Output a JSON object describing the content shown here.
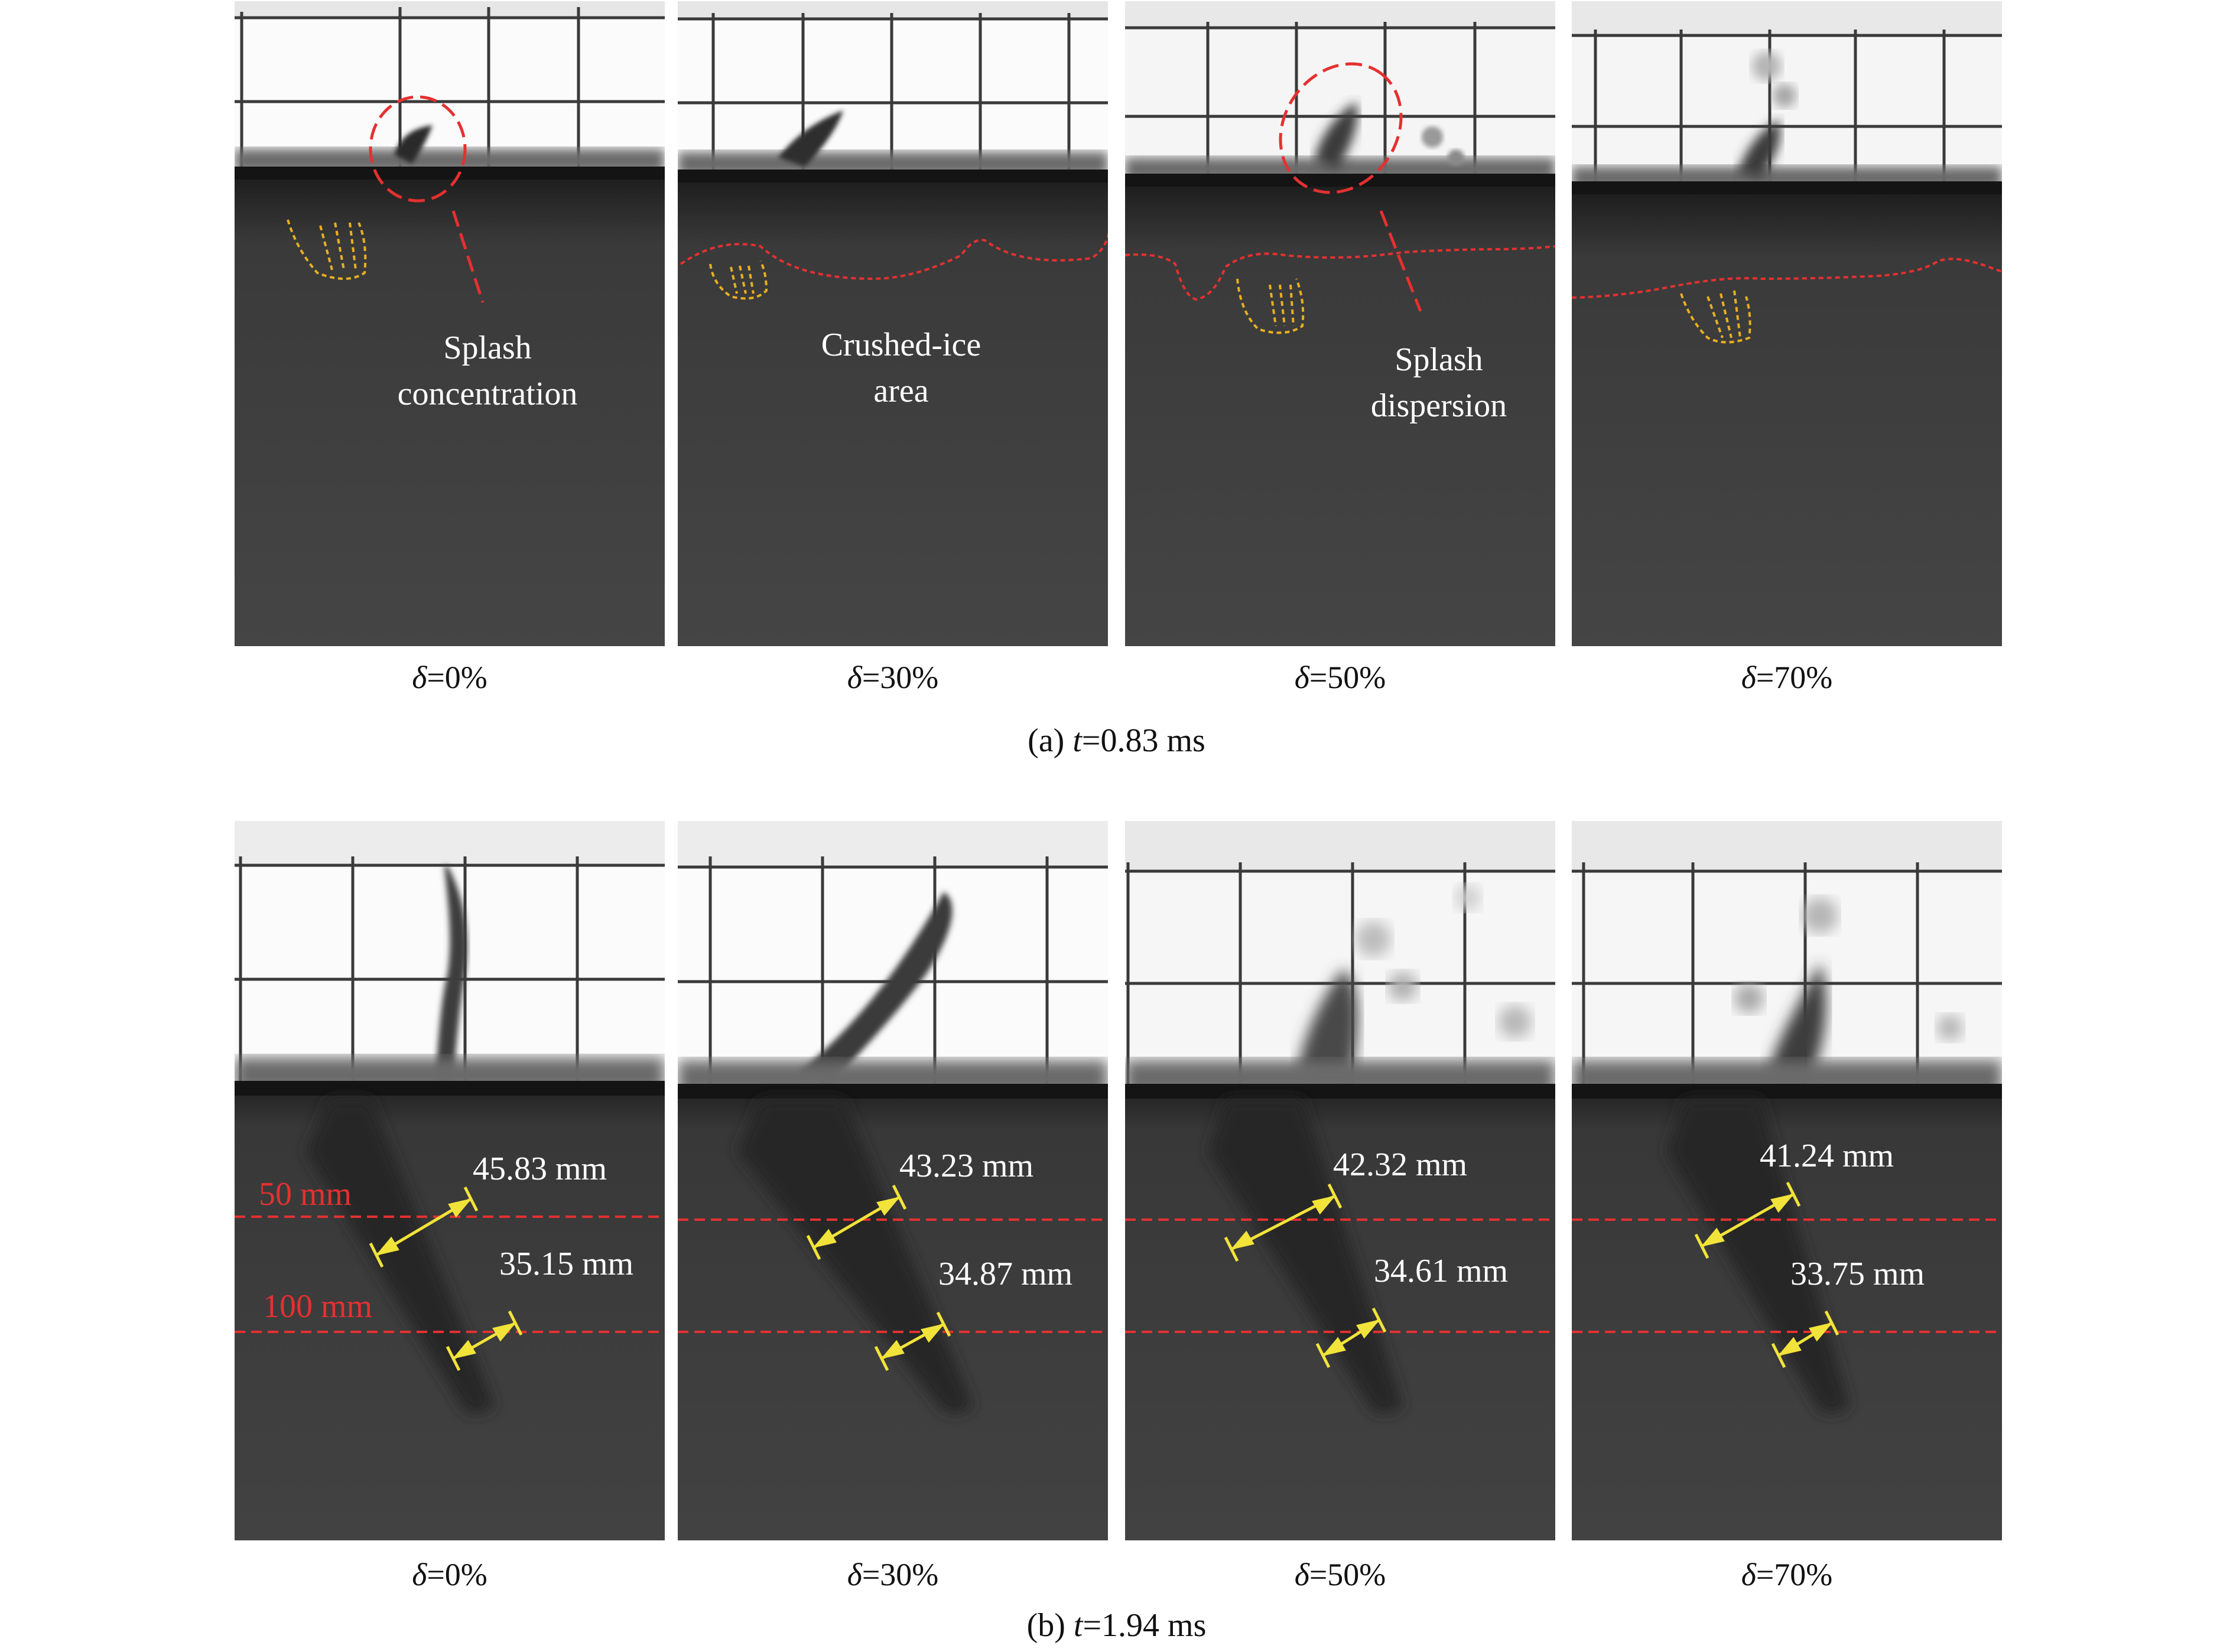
{
  "panel_a": {
    "caption_label": "(a) ",
    "caption_var": "t",
    "caption_value": "=0.83 ms",
    "frames": [
      {
        "delta_symbol": "δ",
        "delta_value": "=0%"
      },
      {
        "delta_symbol": "δ",
        "delta_value": "=30%"
      },
      {
        "delta_symbol": "δ",
        "delta_value": "=50%"
      },
      {
        "delta_symbol": "δ",
        "delta_value": "=70%"
      }
    ],
    "annotations": {
      "splash_concentration": "Splash\nconcentration",
      "crushed_ice_area": "Crushed-ice\narea",
      "splash_dispersion": "Splash\ndispersion"
    }
  },
  "panel_b": {
    "caption_label": "(b) ",
    "caption_var": "t",
    "caption_value": "=1.94 ms",
    "frames": [
      {
        "delta_symbol": "δ",
        "delta_value": "=0%",
        "upper_width": "45.83 mm",
        "lower_width": "35.15 mm"
      },
      {
        "delta_symbol": "δ",
        "delta_value": "=30%",
        "upper_width": "43.23 mm",
        "lower_width": "34.87 mm"
      },
      {
        "delta_symbol": "δ",
        "delta_value": "=50%",
        "upper_width": "42.32 mm",
        "lower_width": "34.61 mm"
      },
      {
        "delta_symbol": "δ",
        "delta_value": "=70%",
        "upper_width": "41.24 mm",
        "lower_width": "33.75 mm"
      }
    ],
    "depth_labels": {
      "upper": "50 mm",
      "lower": "100 mm"
    }
  },
  "colors": {
    "annotation_red": "#e53030",
    "arrow_yellow": "#f2e33a",
    "contour_orange": "#e8b020",
    "water": "#3e3e3e",
    "sky": "#fafafa"
  }
}
